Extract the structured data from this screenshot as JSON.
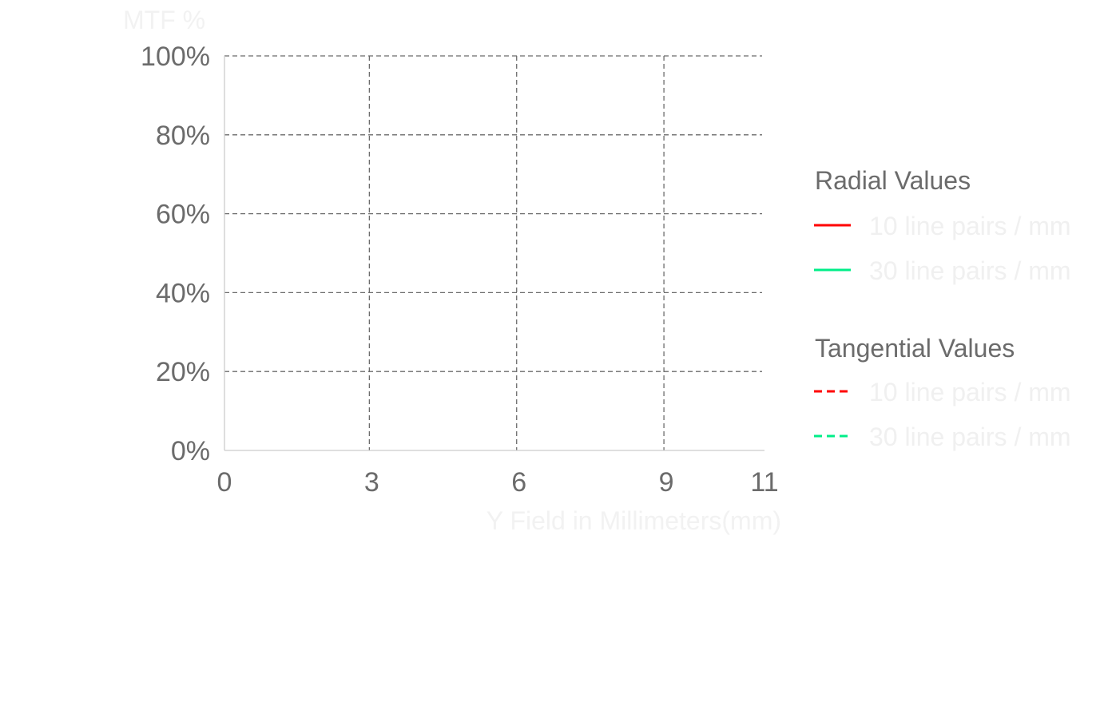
{
  "chart_data": {
    "type": "line",
    "ylabel": "MTF %",
    "xlabel": "Y Field in Millimeters(mm)",
    "xlim": [
      0,
      11
    ],
    "ylim": [
      0,
      100
    ],
    "x_ticks": [
      "0",
      "3",
      "6",
      "9",
      "11"
    ],
    "x_tick_values": [
      0,
      3,
      6,
      9,
      11
    ],
    "y_ticks": [
      "0%",
      "20%",
      "40%",
      "60%",
      "80%",
      "100%"
    ],
    "y_tick_values": [
      0,
      20,
      40,
      60,
      80,
      100
    ],
    "grid": true,
    "legend_position": "right",
    "legend": {
      "groups": [
        {
          "title": "Radial Values",
          "items": [
            {
              "label": "10 line pairs / mm",
              "color": "#ff0000",
              "style": "solid"
            },
            {
              "label": "30 line pairs / mm",
              "color": "#00ee88",
              "style": "solid"
            }
          ]
        },
        {
          "title": "Tangential Values",
          "items": [
            {
              "label": "10 line pairs / mm",
              "color": "#ff0000",
              "style": "dashed"
            },
            {
              "label": "30 line pairs / mm",
              "color": "#00ee88",
              "style": "dashed"
            }
          ]
        }
      ]
    },
    "series": []
  }
}
